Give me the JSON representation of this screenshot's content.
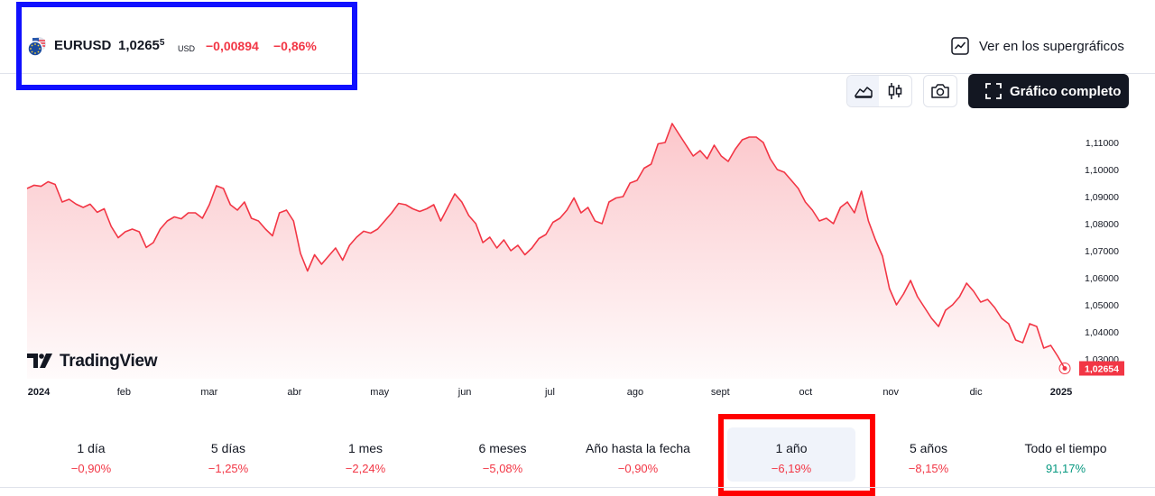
{
  "header": {
    "ticker": "EURUSD",
    "price_main": "1,0265",
    "price_sup": "5",
    "currency": "USD",
    "change_abs": "−0,00894",
    "change_pct": "−0,86%",
    "super_link_label": "Ver en los supergráficos",
    "flag_icon": "eu-us-flag-icon"
  },
  "toolbar": {
    "line_icon": "area-chart-icon",
    "candle_icon": "candlestick-icon",
    "camera_icon": "camera-icon",
    "full_chart_label": "Gráfico completo",
    "full_chart_icon": "fullscreen-icon"
  },
  "logo": {
    "text": "TradingView"
  },
  "colors": {
    "line": "#f23645",
    "negative": "#f23645",
    "positive": "#089981",
    "highlight_blue": "#1010ff",
    "highlight_red": "#ff0000",
    "dark_button": "#131722"
  },
  "chart_data": {
    "type": "area",
    "y_ticks": [
      "1,11000",
      "1,10000",
      "1,09000",
      "1,08000",
      "1,07000",
      "1,06000",
      "1,05000",
      "1,04000",
      "1,03000"
    ],
    "ylim": [
      1.026,
      1.116
    ],
    "x_labels": [
      "2024",
      "feb",
      "mar",
      "abr",
      "may",
      "jun",
      "jul",
      "ago",
      "sept",
      "oct",
      "nov",
      "dic",
      "2025"
    ],
    "last_price_label": "1,02654",
    "series": [
      {
        "values": [
          1.093,
          1.0942,
          1.0938,
          1.0955,
          1.0945,
          1.088,
          1.089,
          1.0872,
          1.086,
          1.0872,
          1.0842,
          1.0855,
          1.079,
          1.0748,
          1.077,
          1.078,
          1.077,
          1.0712,
          1.073,
          1.078,
          1.081,
          1.0825,
          1.0818,
          1.084,
          1.084,
          1.082,
          1.087,
          1.094,
          1.093,
          1.087,
          1.085,
          1.088,
          1.082,
          1.081,
          1.078,
          1.0755,
          1.084,
          1.085,
          1.081,
          1.069,
          1.0625,
          1.0685,
          1.065,
          1.068,
          1.071,
          1.0665,
          1.072,
          1.075,
          1.0772,
          1.0765,
          1.078,
          1.081,
          1.084,
          1.0875,
          1.087,
          1.0855,
          1.0845,
          1.0855,
          1.087,
          1.081,
          1.086,
          1.091,
          1.088,
          1.083,
          1.08,
          1.073,
          1.075,
          1.071,
          1.074,
          1.07,
          1.072,
          1.0685,
          1.071,
          1.0745,
          1.076,
          1.0805,
          1.082,
          1.085,
          1.0895,
          1.084,
          1.086,
          1.081,
          1.08,
          1.088,
          1.0895,
          1.09,
          1.095,
          1.096,
          1.1005,
          1.102,
          1.1095,
          1.11,
          1.117,
          1.113,
          1.109,
          1.105,
          1.107,
          1.104,
          1.109,
          1.105,
          1.103,
          1.1075,
          1.111,
          1.112,
          1.112,
          1.11,
          1.104,
          1.1,
          1.099,
          1.096,
          1.093,
          1.088,
          1.085,
          1.081,
          1.082,
          1.08,
          1.086,
          1.088,
          1.084,
          1.092,
          1.081,
          1.074,
          1.068,
          1.056,
          1.05,
          1.054,
          1.059,
          1.053,
          1.049,
          1.045,
          1.042,
          1.048,
          1.05,
          1.053,
          1.058,
          1.055,
          1.051,
          1.052,
          1.049,
          1.045,
          1.043,
          1.037,
          1.036,
          1.043,
          1.042,
          1.034,
          1.035,
          1.031,
          1.0265
        ]
      }
    ]
  },
  "periods": [
    {
      "label": "1 día",
      "value": "−0,90%",
      "sign": "neg"
    },
    {
      "label": "5 días",
      "value": "−1,25%",
      "sign": "neg"
    },
    {
      "label": "1 mes",
      "value": "−2,24%",
      "sign": "neg"
    },
    {
      "label": "6 meses",
      "value": "−5,08%",
      "sign": "neg"
    },
    {
      "label": "Año hasta la fecha",
      "value": "−0,90%",
      "sign": "neg"
    },
    {
      "label": "1 año",
      "value": "−6,19%",
      "sign": "neg"
    },
    {
      "label": "5 años",
      "value": "−8,15%",
      "sign": "neg"
    },
    {
      "label": "Todo el tiempo",
      "value": "91,17%",
      "sign": "pos"
    }
  ]
}
